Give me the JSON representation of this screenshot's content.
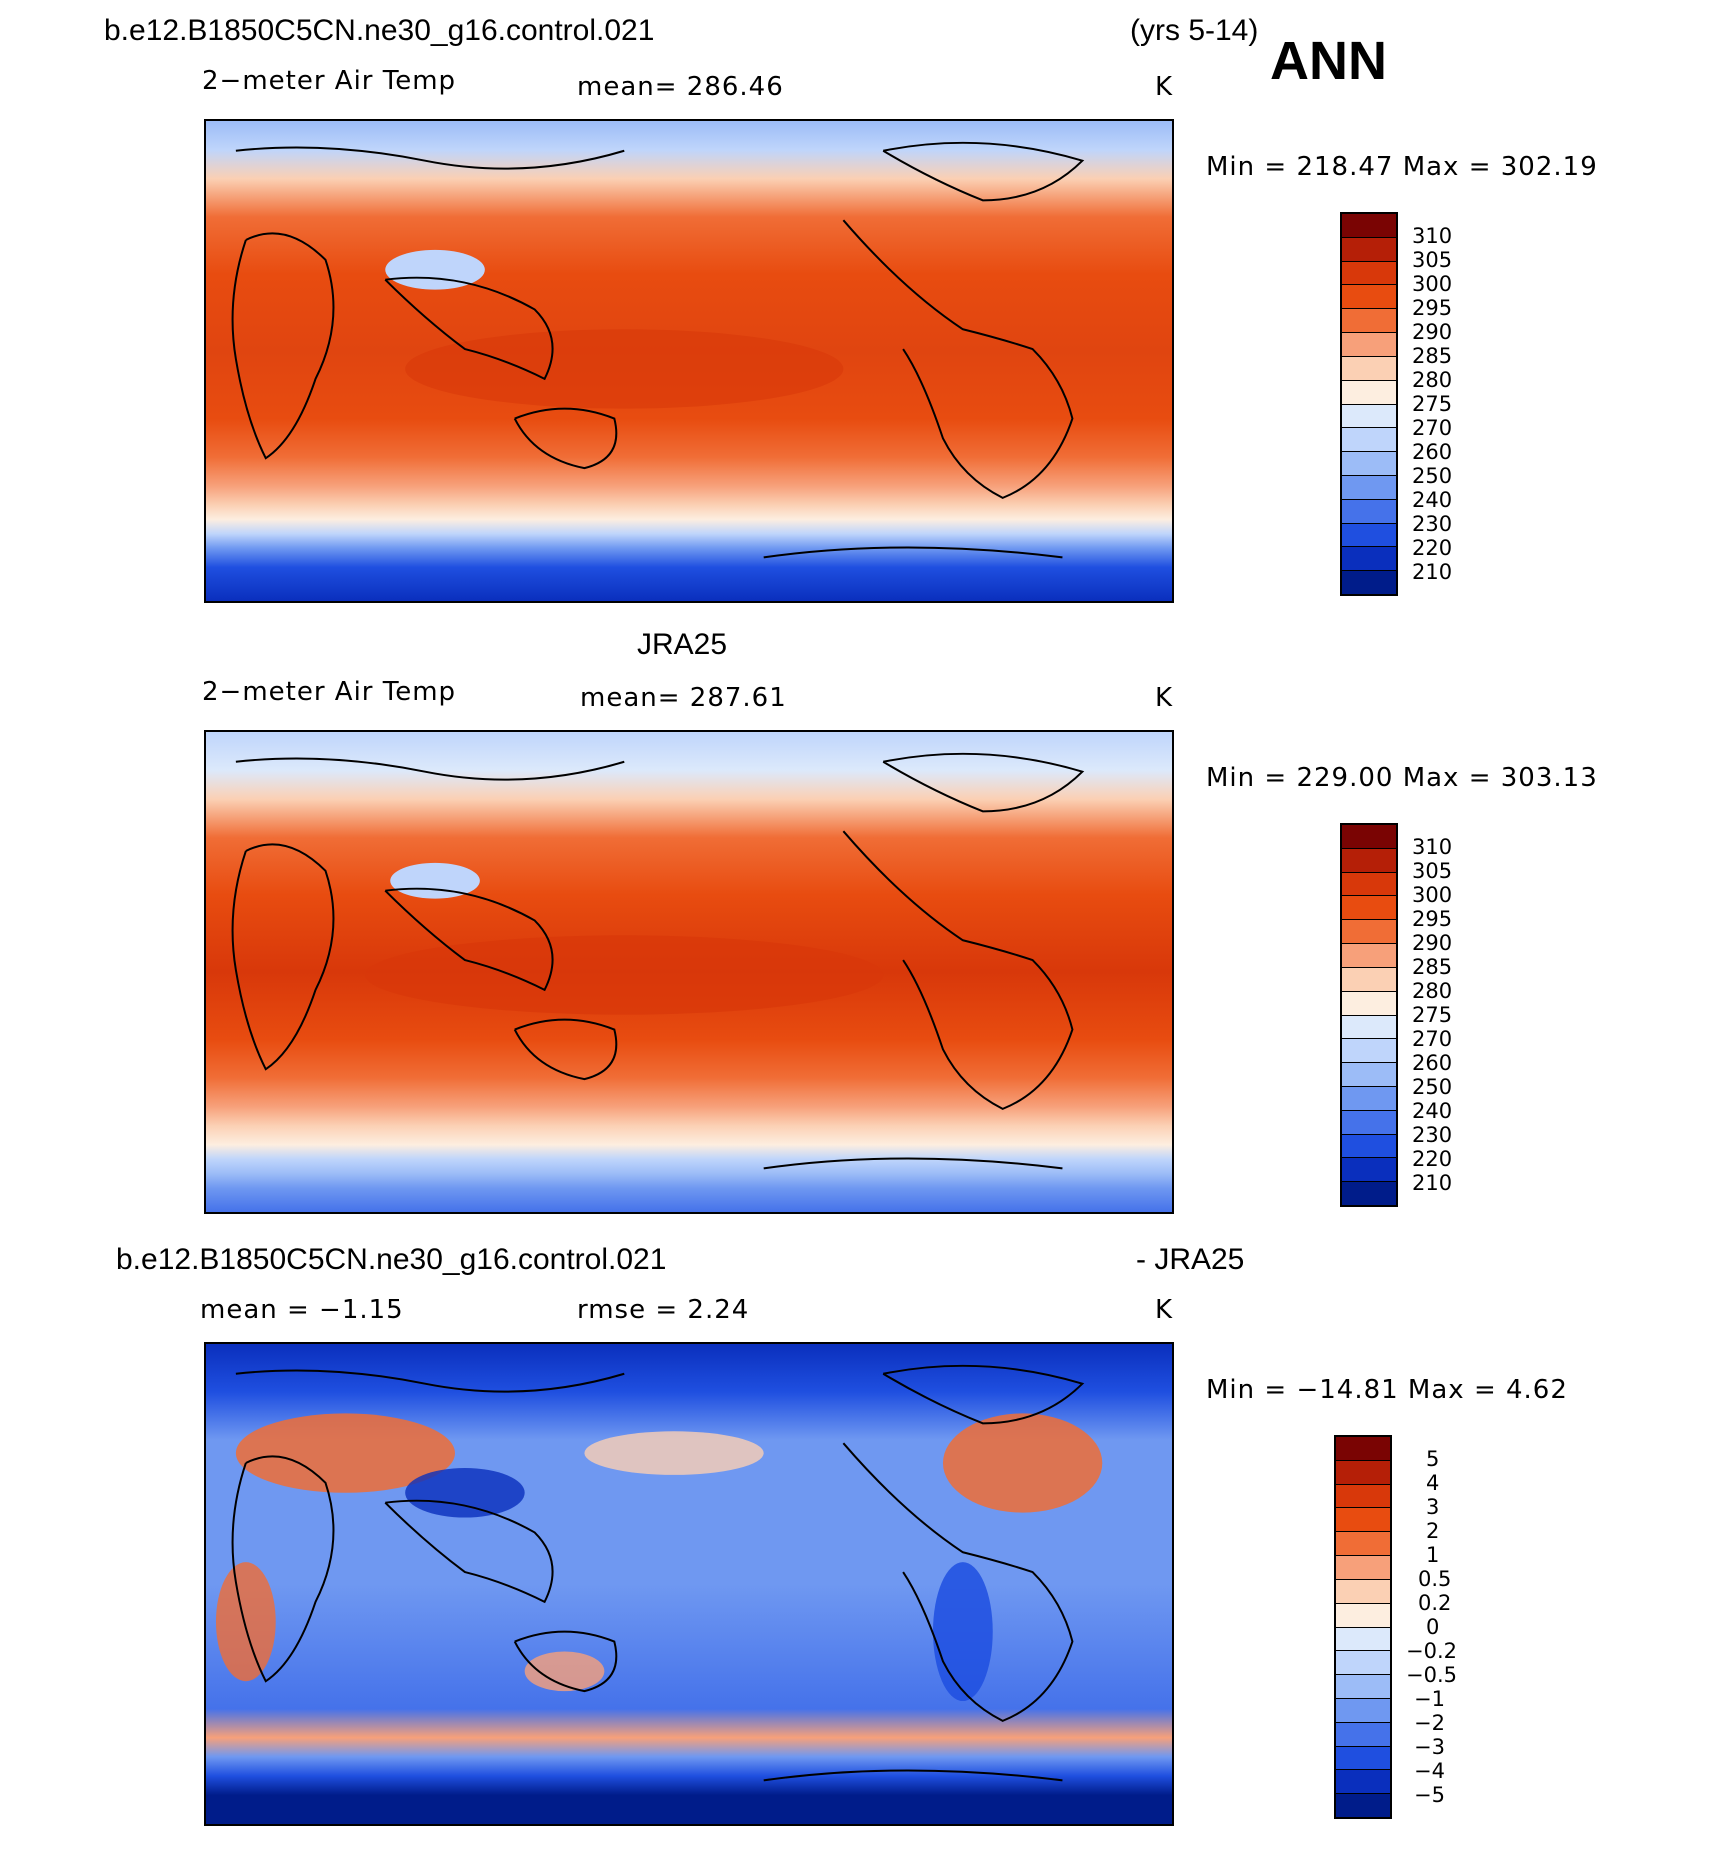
{
  "header": {
    "case_title": "b.e12.B1850C5CN.ne30_g16.control.021",
    "years": "(yrs 5-14)",
    "season": "ANN"
  },
  "panels": [
    {
      "id": "model",
      "title": "",
      "variable": "2−meter Air Temp",
      "stat1": "mean=  286.46",
      "stat2": "",
      "units": "K",
      "minmax": "Min  =  218.47  Max  =  302.19",
      "colorbar_labels": [
        "310",
        "305",
        "300",
        "295",
        "290",
        "285",
        "280",
        "275",
        "270",
        "260",
        "250",
        "240",
        "230",
        "220",
        "210"
      ]
    },
    {
      "id": "obs",
      "title": "JRA25",
      "variable": "2−meter Air Temp",
      "stat1": "mean=  287.61",
      "stat2": "",
      "units": "K",
      "minmax": "Min  =  229.00  Max  =  303.13",
      "colorbar_labels": [
        "310",
        "305",
        "300",
        "295",
        "290",
        "285",
        "280",
        "275",
        "270",
        "260",
        "250",
        "240",
        "230",
        "220",
        "210"
      ]
    },
    {
      "id": "diff",
      "title_left": "b.e12.B1850C5CN.ne30_g16.control.021",
      "title_right": "- JRA25",
      "variable": "",
      "stat1": "mean  =    −1.15",
      "stat2": "rmse  =     2.24",
      "units": "K",
      "minmax": "Min  =  −14.81  Max  =      4.62",
      "colorbar_labels": [
        "5",
        "4",
        "3",
        "2",
        "1",
        "0.5",
        "0.2",
        "0",
        "−0.2",
        "−0.5",
        "−1",
        "−2",
        "−3",
        "−4",
        "−5"
      ]
    }
  ],
  "palette": {
    "warm_cool": [
      "#7a0403",
      "#b51f07",
      "#d8380a",
      "#e84c10",
      "#f06d36",
      "#f7a07a",
      "#fbd0b4",
      "#fdeee0",
      "#dce9fb",
      "#bfd5fb",
      "#9cbcf7",
      "#6f98f1",
      "#4572ea",
      "#1f4fe0",
      "#0a2fbd",
      "#001c8a"
    ],
    "land_line": "#000000"
  }
}
